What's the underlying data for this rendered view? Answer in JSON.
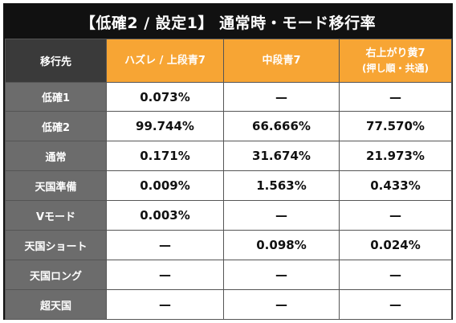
{
  "title": "【低確2 / 設定1】 通常時・モード移行率",
  "header": {
    "corner": "移行先",
    "columns": [
      {
        "label": "ハズレ / 上段青7",
        "sub": ""
      },
      {
        "label": "中段青7",
        "sub": ""
      },
      {
        "label": "右上がり黄7",
        "sub": "(押し順・共通)"
      }
    ]
  },
  "rows": [
    {
      "label": "低確1",
      "values": [
        "0.073%",
        "—",
        "—"
      ]
    },
    {
      "label": "低確2",
      "values": [
        "99.744%",
        "66.666%",
        "77.570%"
      ]
    },
    {
      "label": "通常",
      "values": [
        "0.171%",
        "31.674%",
        "21.973%"
      ]
    },
    {
      "label": "天国準備",
      "values": [
        "0.009%",
        "1.563%",
        "0.433%"
      ]
    },
    {
      "label": "Vモード",
      "values": [
        "0.003%",
        "—",
        "—"
      ]
    },
    {
      "label": "天国ショート",
      "values": [
        "—",
        "0.098%",
        "0.024%"
      ]
    },
    {
      "label": "天国ロング",
      "values": [
        "—",
        "—",
        "—"
      ]
    },
    {
      "label": "超天国",
      "values": [
        "—",
        "—",
        "—"
      ]
    }
  ],
  "colors": {
    "title_bg": "#111111",
    "corner_bg": "#3a3a3a",
    "header_bg": "#f7a534",
    "row_label_bg": "#6c6c6c"
  }
}
